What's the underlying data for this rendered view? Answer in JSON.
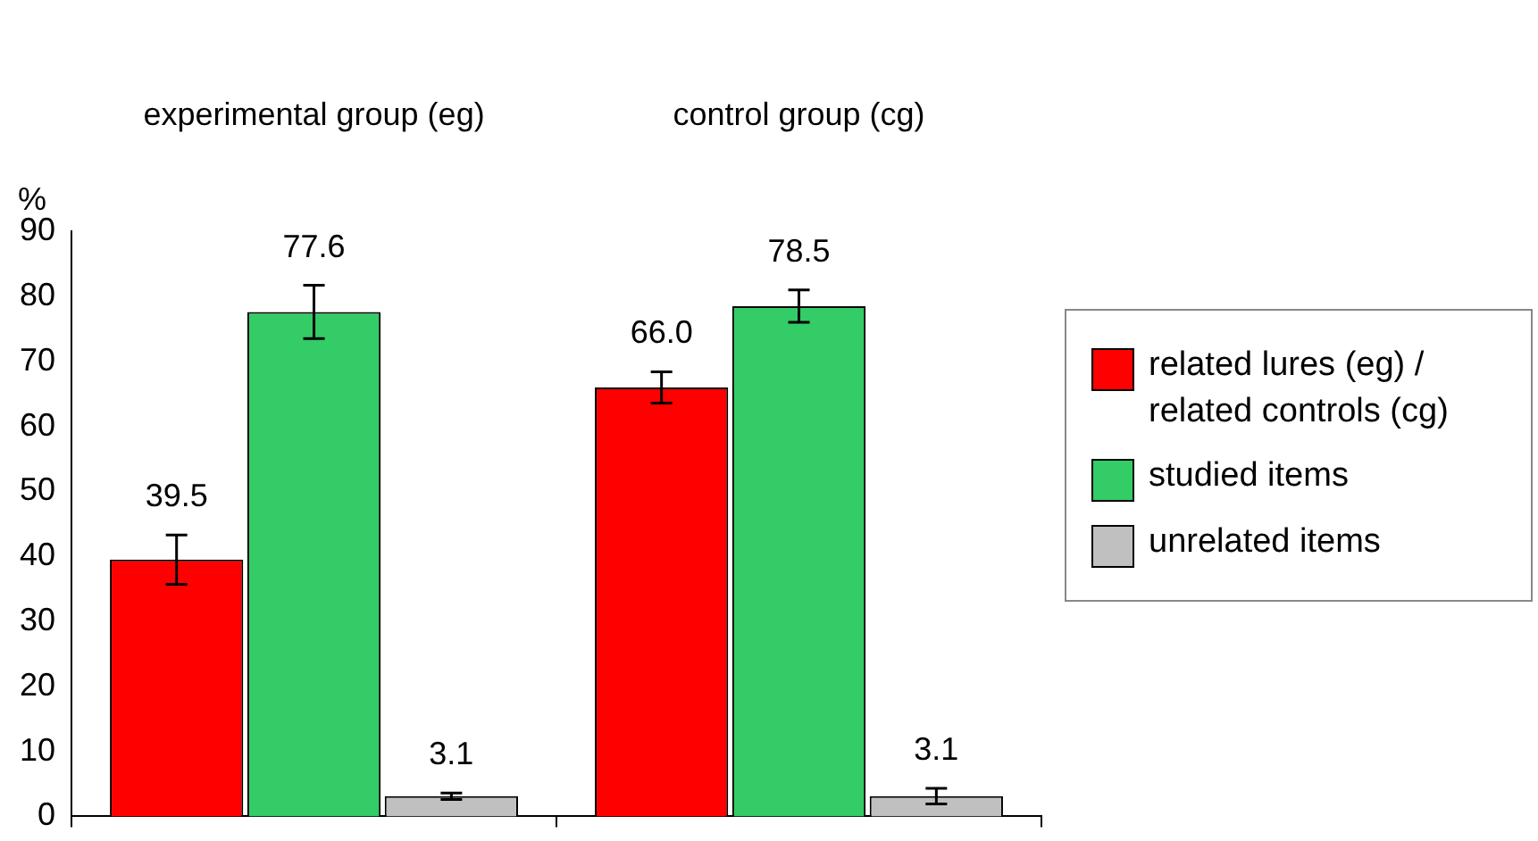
{
  "chart_data": {
    "type": "bar",
    "categories": [
      "experimental group (eg)",
      "control group (cg)"
    ],
    "ylabel": "%",
    "ylim": [
      0,
      90
    ],
    "yticks": [
      0,
      10,
      20,
      30,
      40,
      50,
      60,
      70,
      80,
      90
    ],
    "grid": false,
    "legend": "right",
    "series": [
      {
        "name": "related lures (eg) / related controls (cg)",
        "color": "#ff0000",
        "values": [
          39.5,
          66.0
        ],
        "value_labels": [
          "39.5",
          "66.0"
        ],
        "errors": [
          3.8,
          2.4
        ]
      },
      {
        "name": "studied items",
        "color": "#33cc66",
        "values": [
          77.6,
          78.5
        ],
        "value_labels": [
          "77.6",
          "78.5"
        ],
        "errors": [
          4.1,
          2.5
        ]
      },
      {
        "name": "unrelated items",
        "color": "#c0c0c0",
        "values": [
          3.1,
          3.1
        ],
        "value_labels": [
          "3.1",
          "3.1"
        ],
        "errors": [
          0.5,
          1.2
        ]
      }
    ]
  }
}
